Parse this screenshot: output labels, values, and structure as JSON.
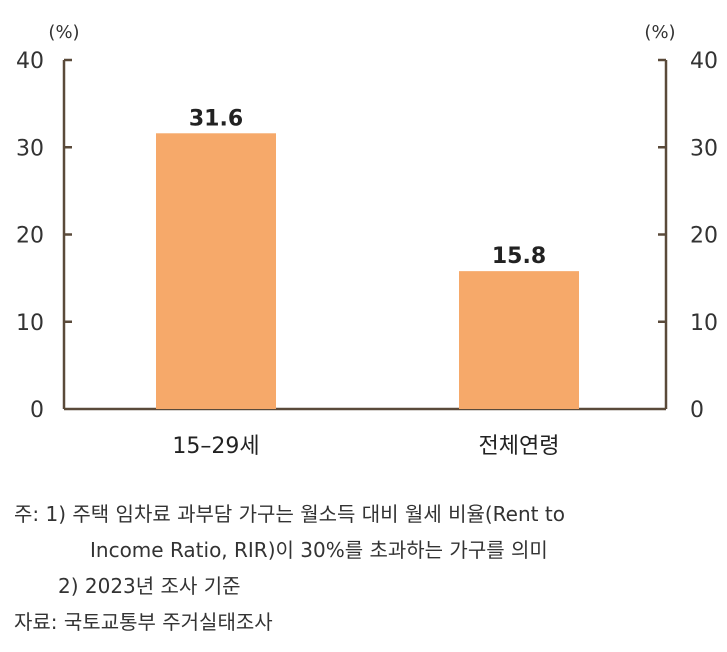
{
  "chart_data": {
    "type": "bar",
    "categories": [
      "15–29세",
      "전체연령"
    ],
    "values": [
      31.6,
      15.8
    ],
    "data_labels": [
      "31.6",
      "15.8"
    ],
    "y_unit_left": "(%)",
    "y_unit_right": "(%)",
    "ylim": [
      0,
      40
    ],
    "yticks": [
      0,
      10,
      20,
      30,
      40
    ],
    "bar_color": "#F6A96A",
    "axis_color": "#5a4a3a",
    "grid": false
  },
  "notes": {
    "line1": "주:  1) 주택 임차료 과부담 가구는 월소득 대비 월세 비율(Rent to",
    "line2": "Income Ratio,  RIR)이 30%를 초과하는 가구를 의미",
    "line3": "2) 2023년 조사 기준",
    "line4": "자료:  국토교통부 주거실태조사"
  }
}
